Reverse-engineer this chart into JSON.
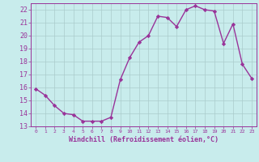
{
  "x": [
    0,
    1,
    2,
    3,
    4,
    5,
    6,
    7,
    8,
    9,
    10,
    11,
    12,
    13,
    14,
    15,
    16,
    17,
    18,
    19,
    20,
    21,
    22,
    23
  ],
  "y": [
    15.9,
    15.4,
    14.6,
    14.0,
    13.9,
    13.4,
    13.4,
    13.4,
    13.7,
    16.6,
    18.3,
    19.5,
    20.0,
    21.5,
    21.4,
    20.7,
    22.0,
    22.3,
    22.0,
    21.9,
    19.4,
    20.9,
    17.8,
    16.7
  ],
  "line_color": "#993399",
  "marker": "D",
  "markersize": 2.2,
  "linewidth": 1.0,
  "bg_color": "#c8ecec",
  "grid_color": "#aacccc",
  "xlabel": "Windchill (Refroidissement éolien,°C)",
  "ylabel": "",
  "ylim": [
    13,
    22.5
  ],
  "xlim": [
    -0.5,
    23.5
  ],
  "yticks": [
    13,
    14,
    15,
    16,
    17,
    18,
    19,
    20,
    21,
    22
  ],
  "xticks": [
    0,
    1,
    2,
    3,
    4,
    5,
    6,
    7,
    8,
    9,
    10,
    11,
    12,
    13,
    14,
    15,
    16,
    17,
    18,
    19,
    20,
    21,
    22,
    23
  ],
  "tick_color": "#993399",
  "label_color": "#993399",
  "font": "monospace",
  "xlabel_fontsize": 6.0,
  "ytick_fontsize": 6.0,
  "xtick_fontsize": 4.5
}
